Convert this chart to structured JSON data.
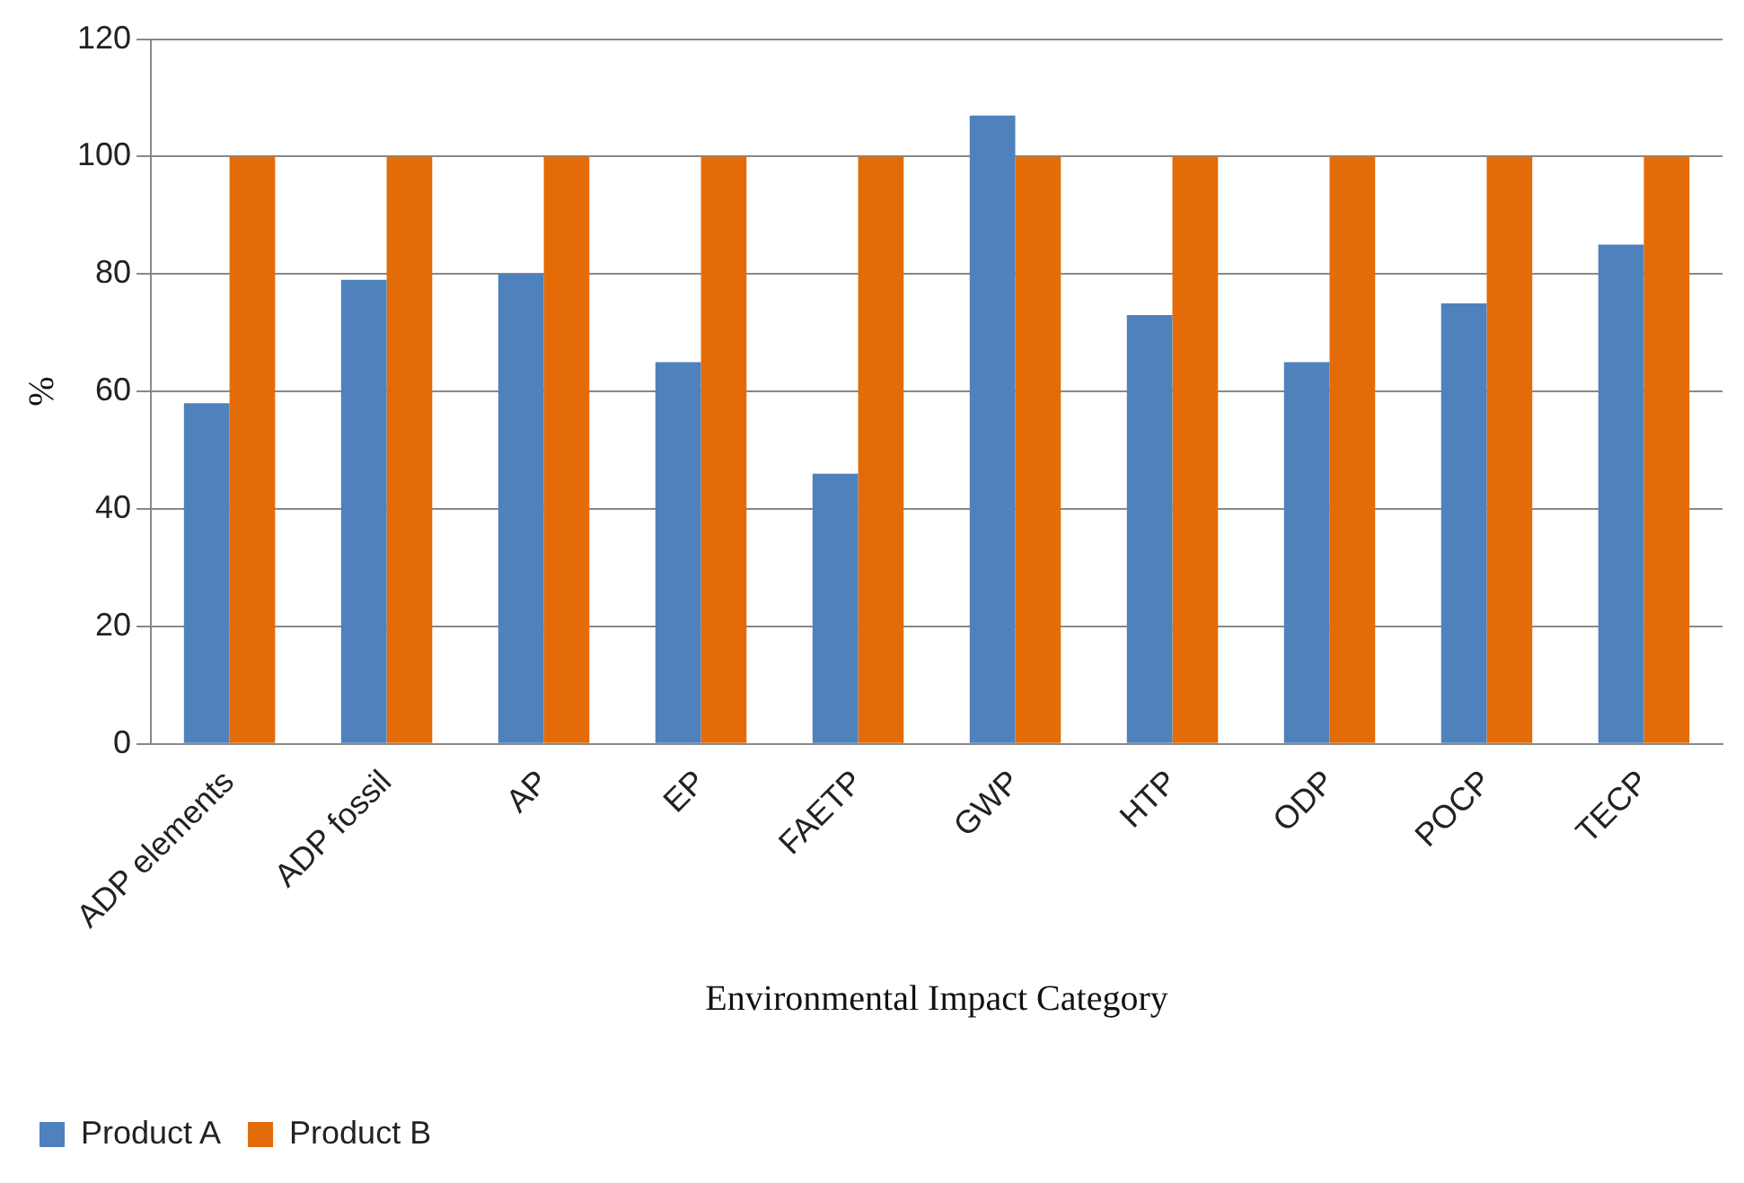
{
  "chart_data": {
    "type": "bar",
    "xlabel": "Environmental Impact Category",
    "ylabel": "%",
    "categories": [
      "ADP elements",
      "ADP fossil",
      "AP",
      "EP",
      "FAETP",
      "GWP",
      "HTP",
      "ODP",
      "POCP",
      "TECP"
    ],
    "series": [
      {
        "name": "Product A",
        "color": "#4f81bd",
        "values": [
          58,
          79,
          80,
          65,
          46,
          107,
          73,
          65,
          75,
          85
        ]
      },
      {
        "name": "Product B",
        "color": "#e36c09",
        "values": [
          100,
          100,
          100,
          100,
          100,
          100,
          100,
          100,
          100,
          100
        ]
      }
    ],
    "ylim": [
      0,
      120
    ],
    "yticks": [
      0,
      20,
      40,
      60,
      80,
      100,
      120
    ],
    "grid": "y",
    "legend": "bottom left"
  }
}
